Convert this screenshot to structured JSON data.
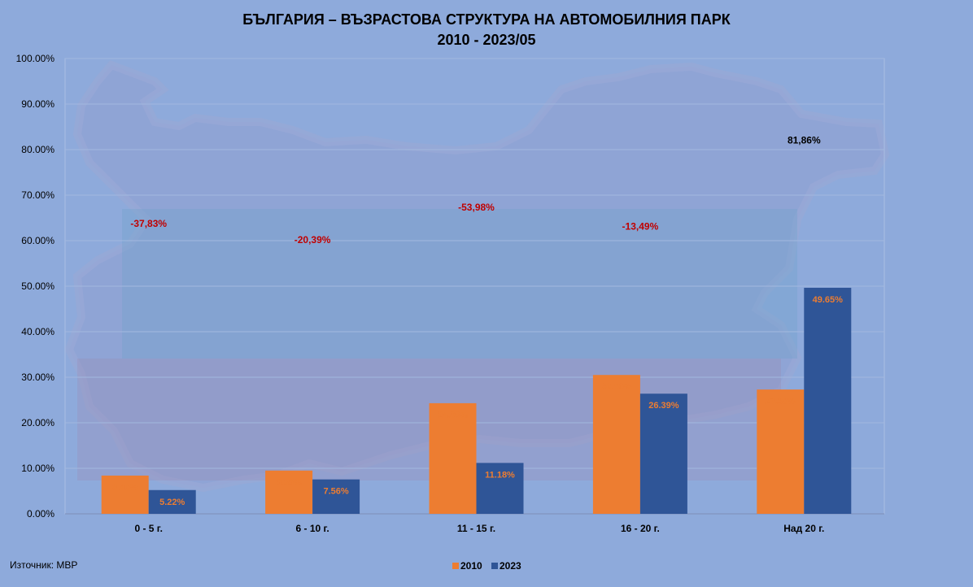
{
  "chart_data": {
    "type": "bar",
    "title": "БЪЛГАРИЯ – ВЪЗРАСТОВА  СТРУКТУРА НА АВТОМОБИЛНИЯ  ПАРК",
    "subtitle": "2010 - 2023/05",
    "categories": [
      "0 - 5 г.",
      "6 - 10 г.",
      "11 - 15 г.",
      "16 - 20 г.",
      "Над 20 г."
    ],
    "series": [
      {
        "name": "2010",
        "values": [
          8.4,
          9.5,
          24.3,
          30.5,
          27.3
        ],
        "labels": [
          "8.40%",
          "9.50%",
          "24.30%",
          "30.50%",
          "27.30%"
        ],
        "color": "#ed7d31"
      },
      {
        "name": "2023",
        "values": [
          5.22,
          7.56,
          11.18,
          26.39,
          49.65
        ],
        "labels": [
          "5.22%",
          "7.56%",
          "11.18%",
          "26.39%",
          "49.65%"
        ],
        "color": "#2f5597"
      }
    ],
    "change_labels": [
      "-37,83%",
      "-20,39%",
      "-53,98%",
      "-13,49%",
      "81,86%"
    ],
    "change_colors": [
      "#c00000",
      "#c00000",
      "#c00000",
      "#c00000",
      "#000000"
    ],
    "change_label_values": [
      63,
      59.5,
      66.6,
      62.4,
      81.3
    ],
    "ylim": [
      0,
      100
    ],
    "ytick_values": [
      0,
      10,
      20,
      30,
      40,
      50,
      60,
      70,
      80,
      90,
      100
    ],
    "yticks": [
      "0.00%",
      "10.00%",
      "20.00%",
      "30.00%",
      "40.00%",
      "50.00%",
      "60.00%",
      "70.00%",
      "80.00%",
      "90.00%",
      "100.00%"
    ],
    "grid": true,
    "legend_position": "bottom-center",
    "source": "Източник: МВР",
    "colors": {
      "background": "#8eaadb",
      "label_2010": "#ed7d31",
      "label_2023": "#ed7d31",
      "change_negative": "#c00000",
      "change_positive": "#000000",
      "text": "#000000"
    }
  }
}
